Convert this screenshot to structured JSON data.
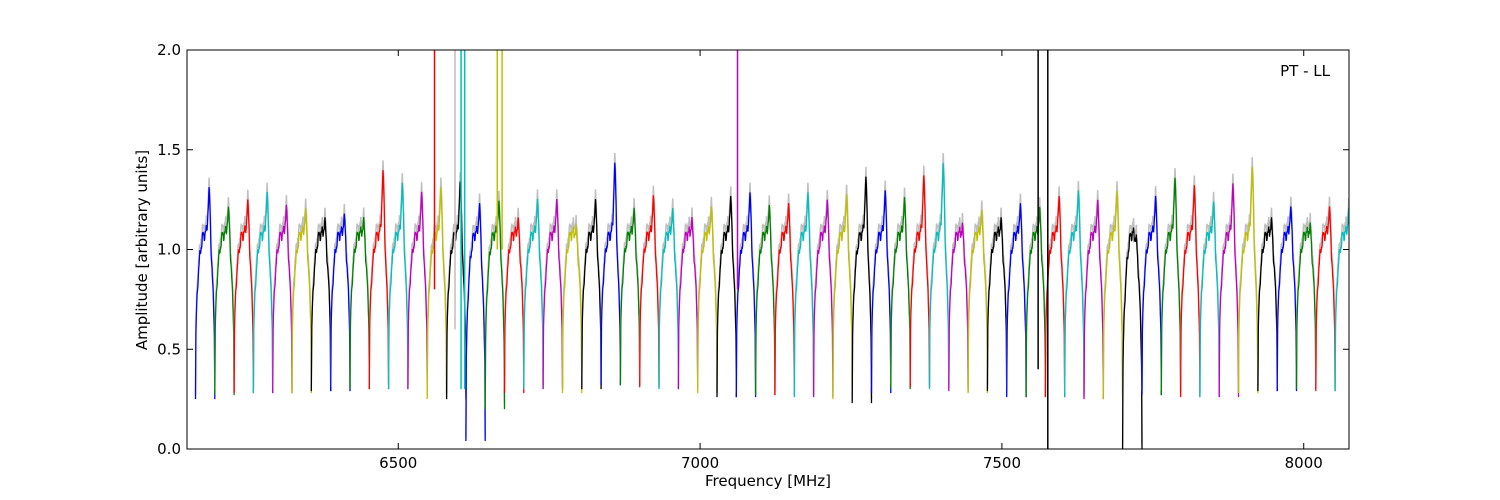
{
  "chart_data": {
    "type": "line",
    "annotation": "PT - LL",
    "xlabel": "Frequency [MHz]",
    "ylabel": "Amplitude [arbitrary units]",
    "xlim": [
      6150,
      8075
    ],
    "ylim": [
      0.0,
      2.0
    ],
    "x_ticks": [
      6500,
      7000,
      7500,
      8000
    ],
    "x_tick_labels": [
      "6500",
      "7000",
      "7500",
      "8000"
    ],
    "y_ticks": [
      0.0,
      0.5,
      1.0,
      1.5,
      2.0
    ],
    "y_tick_labels": [
      "0.0",
      "0.5",
      "1.0",
      "1.5",
      "2.0"
    ],
    "grid": false,
    "legend": false,
    "channel_width_mhz": 32,
    "first_channel_center_mhz": 6180,
    "color_cycle": [
      "#0000ff",
      "#008000",
      "#ff0000",
      "#00bfbf",
      "#bf00bf",
      "#bfbf00",
      "#000000"
    ],
    "background_color": "#bfbfbf",
    "channels": [
      {
        "center": 6180,
        "peak": 1.37,
        "min": 0.25,
        "color": "#0000ff"
      },
      {
        "center": 6212,
        "peak": 1.26,
        "min": 0.27,
        "color": "#008000"
      },
      {
        "center": 6244,
        "peak": 1.3,
        "min": 0.28,
        "color": "#ff0000"
      },
      {
        "center": 6276,
        "peak": 1.34,
        "min": 0.28,
        "color": "#00bfbf"
      },
      {
        "center": 6308,
        "peak": 1.27,
        "min": 0.28,
        "color": "#bf00bf"
      },
      {
        "center": 6340,
        "peak": 1.25,
        "min": 0.28,
        "color": "#bfbf00"
      },
      {
        "center": 6372,
        "peak": 1.2,
        "min": 0.29,
        "color": "#000000"
      },
      {
        "center": 6404,
        "peak": 1.22,
        "min": 0.29,
        "color": "#0000ff"
      },
      {
        "center": 6436,
        "peak": 1.2,
        "min": 0.3,
        "color": "#008000"
      },
      {
        "center": 6468,
        "peak": 1.46,
        "min": 0.3,
        "color": "#ff0000"
      },
      {
        "center": 6500,
        "peak": 1.39,
        "min": 0.3,
        "color": "#00bfbf"
      },
      {
        "center": 6532,
        "peak": 1.34,
        "min": 0.3,
        "color": "#bf00bf"
      },
      {
        "center": 6564,
        "peak": 1.37,
        "min": 0.25,
        "color": "#bfbf00"
      },
      {
        "center": 6596,
        "peak": 1.4,
        "min": 0.25,
        "color": "#000000"
      },
      {
        "center": 6628,
        "peak": 1.3,
        "min": 0.04,
        "color": "#0000ff"
      },
      {
        "center": 6660,
        "peak": 1.3,
        "min": 0.2,
        "color": "#008000"
      },
      {
        "center": 6692,
        "peak": 1.2,
        "min": 0.28,
        "color": "#ff0000"
      },
      {
        "center": 6724,
        "peak": 1.3,
        "min": 0.3,
        "color": "#00bfbf"
      },
      {
        "center": 6756,
        "peak": 1.3,
        "min": 0.3,
        "color": "#bf00bf"
      },
      {
        "center": 6788,
        "peak": 1.16,
        "min": 0.28,
        "color": "#bfbf00"
      },
      {
        "center": 6820,
        "peak": 1.3,
        "min": 0.3,
        "color": "#000000"
      },
      {
        "center": 6852,
        "peak": 1.5,
        "min": 0.32,
        "color": "#0000ff"
      },
      {
        "center": 6884,
        "peak": 1.25,
        "min": 0.32,
        "color": "#008000"
      },
      {
        "center": 6916,
        "peak": 1.32,
        "min": 0.31,
        "color": "#ff0000"
      },
      {
        "center": 6948,
        "peak": 1.25,
        "min": 0.3,
        "color": "#00bfbf"
      },
      {
        "center": 6980,
        "peak": 1.2,
        "min": 0.3,
        "color": "#bf00bf"
      },
      {
        "center": 7012,
        "peak": 1.26,
        "min": 0.28,
        "color": "#bfbf00"
      },
      {
        "center": 7044,
        "peak": 1.32,
        "min": 0.26,
        "color": "#000000"
      },
      {
        "center": 7076,
        "peak": 1.34,
        "min": 0.26,
        "color": "#0000ff"
      },
      {
        "center": 7108,
        "peak": 1.27,
        "min": 0.27,
        "color": "#008000"
      },
      {
        "center": 7140,
        "peak": 1.28,
        "min": 0.27,
        "color": "#ff0000"
      },
      {
        "center": 7172,
        "peak": 1.34,
        "min": 0.26,
        "color": "#00bfbf"
      },
      {
        "center": 7204,
        "peak": 1.3,
        "min": 0.26,
        "color": "#bf00bf"
      },
      {
        "center": 7236,
        "peak": 1.33,
        "min": 0.25,
        "color": "#bfbf00"
      },
      {
        "center": 7268,
        "peak": 1.43,
        "min": 0.23,
        "color": "#000000"
      },
      {
        "center": 7300,
        "peak": 1.35,
        "min": 0.28,
        "color": "#0000ff"
      },
      {
        "center": 7332,
        "peak": 1.31,
        "min": 0.3,
        "color": "#008000"
      },
      {
        "center": 7364,
        "peak": 1.43,
        "min": 0.31,
        "color": "#ff0000"
      },
      {
        "center": 7396,
        "peak": 1.5,
        "min": 0.3,
        "color": "#00bfbf"
      },
      {
        "center": 7428,
        "peak": 1.17,
        "min": 0.29,
        "color": "#bf00bf"
      },
      {
        "center": 7460,
        "peak": 1.24,
        "min": 0.28,
        "color": "#bfbf00"
      },
      {
        "center": 7492,
        "peak": 1.2,
        "min": 0.29,
        "color": "#000000"
      },
      {
        "center": 7524,
        "peak": 1.28,
        "min": 0.26,
        "color": "#0000ff"
      },
      {
        "center": 7556,
        "peak": 1.26,
        "min": 0.26,
        "color": "#008000"
      },
      {
        "center": 7588,
        "peak": 1.32,
        "min": 0.26,
        "color": "#ff0000"
      },
      {
        "center": 7620,
        "peak": 1.35,
        "min": 0.26,
        "color": "#00bfbf"
      },
      {
        "center": 7652,
        "peak": 1.3,
        "min": 0.25,
        "color": "#bf00bf"
      },
      {
        "center": 7684,
        "peak": 1.35,
        "min": 0.25,
        "color": "#bfbf00"
      },
      {
        "center": 7716,
        "peak": 1.13,
        "min": 0.0,
        "color": "#000000"
      },
      {
        "center": 7748,
        "peak": 1.32,
        "min": 0.27,
        "color": "#0000ff"
      },
      {
        "center": 7780,
        "peak": 1.42,
        "min": 0.27,
        "color": "#008000"
      },
      {
        "center": 7812,
        "peak": 1.38,
        "min": 0.26,
        "color": "#ff0000"
      },
      {
        "center": 7844,
        "peak": 1.29,
        "min": 0.26,
        "color": "#00bfbf"
      },
      {
        "center": 7876,
        "peak": 1.39,
        "min": 0.26,
        "color": "#bf00bf"
      },
      {
        "center": 7908,
        "peak": 1.48,
        "min": 0.28,
        "color": "#bfbf00"
      },
      {
        "center": 7940,
        "peak": 1.2,
        "min": 0.29,
        "color": "#000000"
      },
      {
        "center": 7972,
        "peak": 1.26,
        "min": 0.29,
        "color": "#0000ff"
      },
      {
        "center": 8004,
        "peak": 1.17,
        "min": 0.3,
        "color": "#008000"
      },
      {
        "center": 8036,
        "peak": 1.26,
        "min": 0.29,
        "color": "#ff0000"
      },
      {
        "center": 8068,
        "peak": 1.25,
        "min": 0.29,
        "color": "#00bfbf"
      }
    ],
    "spikes": [
      {
        "x": 6560,
        "ymin": 0.8,
        "ymax": 2.0,
        "color": "#ff0000"
      },
      {
        "x": 6594,
        "ymin": 0.6,
        "ymax": 2.0,
        "color": "#bfbfbf"
      },
      {
        "x": 6604,
        "ymin": 0.3,
        "ymax": 2.0,
        "color": "#00bfbf"
      },
      {
        "x": 6610,
        "ymin": 0.3,
        "ymax": 2.0,
        "color": "#00bfbf"
      },
      {
        "x": 6664,
        "ymin": 1.0,
        "ymax": 2.0,
        "color": "#bfbf00"
      },
      {
        "x": 6672,
        "ymin": 1.0,
        "ymax": 2.0,
        "color": "#bfbf00"
      },
      {
        "x": 7062,
        "ymin": 0.8,
        "ymax": 2.0,
        "color": "#bf00bf"
      },
      {
        "x": 7560,
        "ymin": 0.4,
        "ymax": 2.0,
        "color": "#000000"
      },
      {
        "x": 7576,
        "ymin": 0.0,
        "ymax": 2.0,
        "color": "#000000"
      }
    ]
  }
}
